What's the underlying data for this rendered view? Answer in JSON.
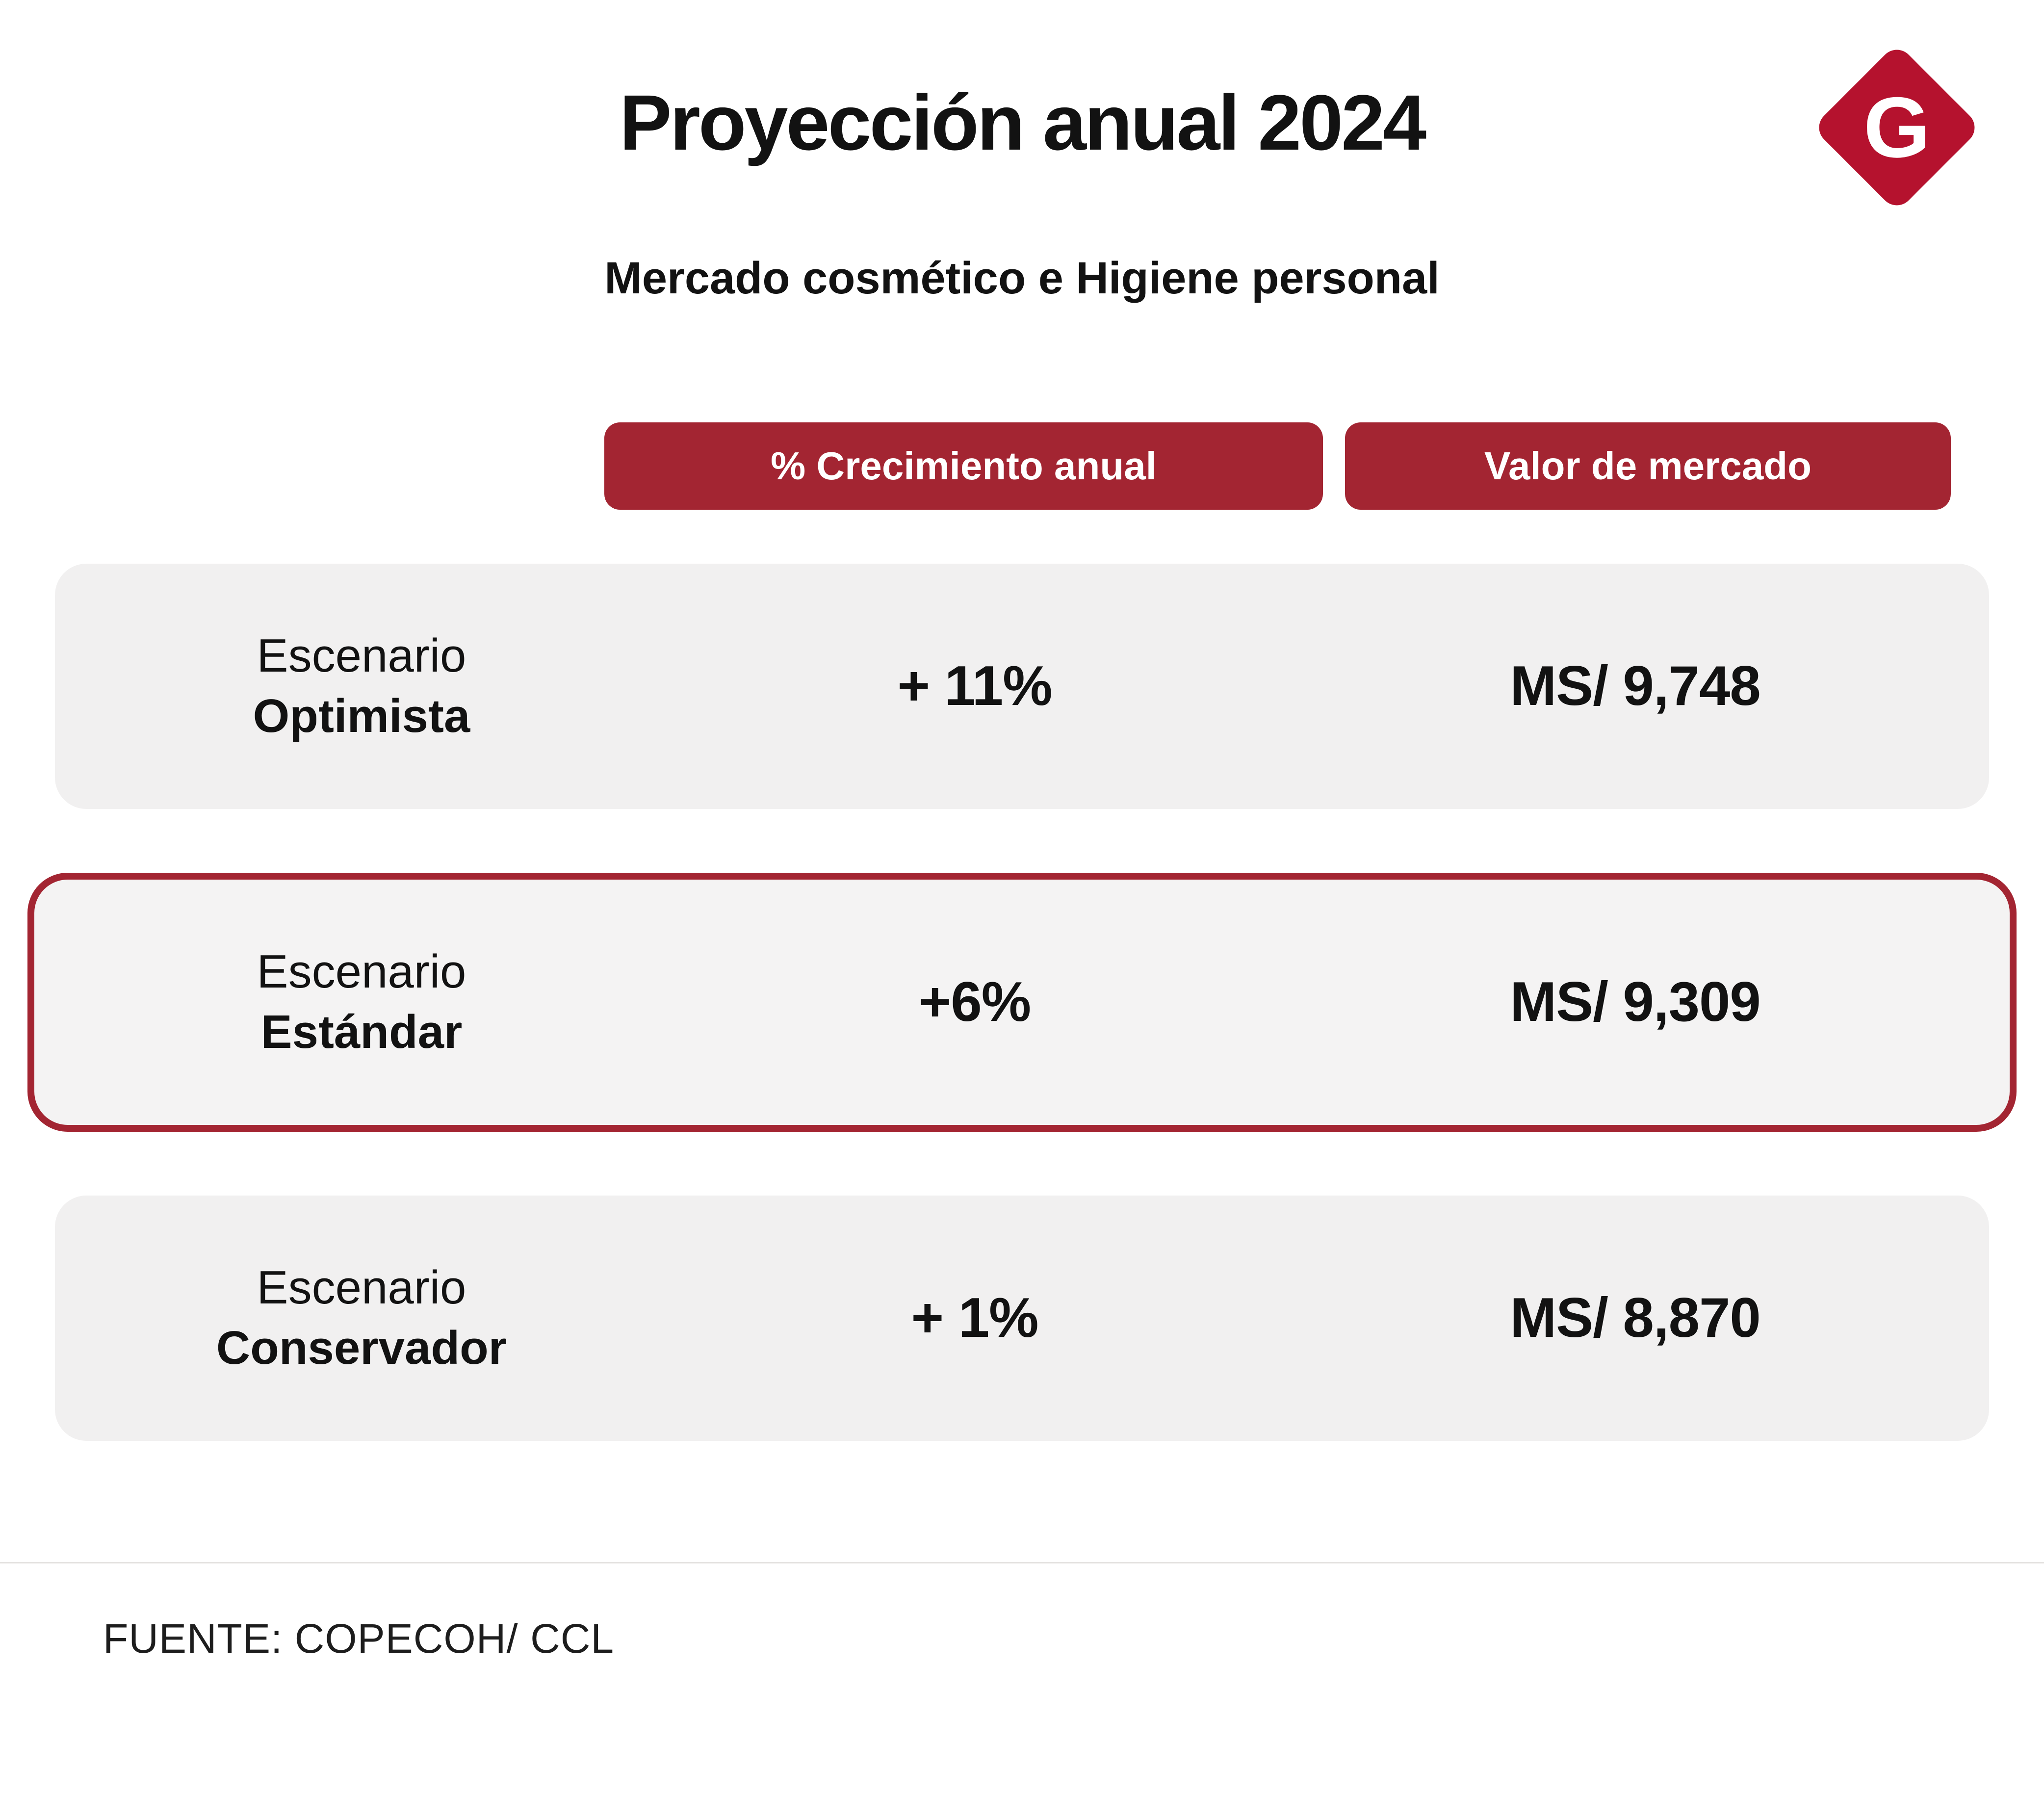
{
  "logo": {
    "letter": "G"
  },
  "colors": {
    "accent": "#a32532",
    "logo": "#b5122e",
    "row_background": "#f1f0f0",
    "text": "#121212"
  },
  "chart_data": {
    "type": "table",
    "title": "Proyección anual 2024",
    "subtitle": "Mercado cosmético e Higiene personal",
    "columns": [
      "% Crecimiento anual",
      "Valor de mercado"
    ],
    "rows": [
      {
        "scenario_prefix": "Escenario",
        "scenario_name": "Optimista",
        "growth": "+ 11%",
        "growth_pct": 11,
        "market_value": "MS/ 9,748",
        "market_value_num": 9748,
        "highlighted": false
      },
      {
        "scenario_prefix": "Escenario",
        "scenario_name": "Estándar",
        "growth": "+6%",
        "growth_pct": 6,
        "market_value": "MS/ 9,309",
        "market_value_num": 9309,
        "highlighted": true
      },
      {
        "scenario_prefix": "Escenario",
        "scenario_name": "Conservador",
        "growth": "+ 1%",
        "growth_pct": 1,
        "market_value": "MS/ 8,870",
        "market_value_num": 8870,
        "highlighted": false
      }
    ],
    "source": "FUENTE: COPECOH/ CCL"
  }
}
